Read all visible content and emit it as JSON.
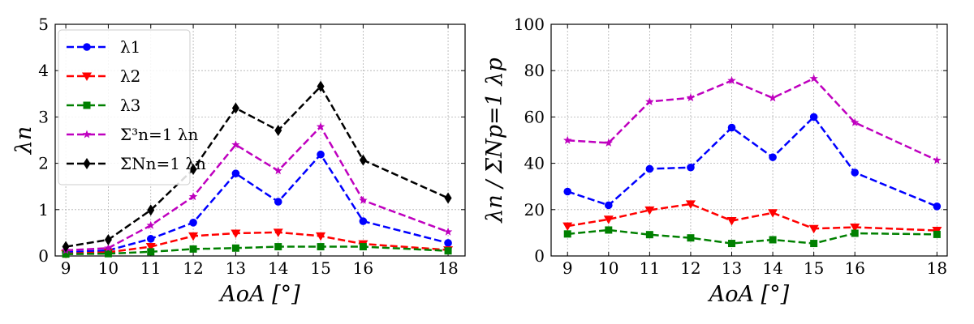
{
  "chart_data": [
    {
      "type": "line",
      "title": "",
      "xlabel": "AoA [°]",
      "ylabel": "λn",
      "x": [
        9,
        10,
        11,
        12,
        13,
        14,
        15,
        16,
        18
      ],
      "x_tick_labels": [
        "9",
        "10",
        "11",
        "12",
        "13",
        "14",
        "15",
        "16",
        "18"
      ],
      "xlim": [
        8.75,
        18.4
      ],
      "ylim": [
        0,
        5
      ],
      "y_ticks": [
        0,
        1,
        2,
        3,
        4,
        5
      ],
      "y_tick_labels": [
        "0",
        "1",
        "2",
        "3",
        "4",
        "5"
      ],
      "grid": true,
      "legend_position": "top-left",
      "series": [
        {
          "name": "λ1",
          "color": "#0000ff",
          "marker": "circle",
          "values": [
            0.08,
            0.12,
            0.37,
            0.72,
            1.78,
            1.17,
            2.19,
            0.75,
            0.28
          ]
        },
        {
          "name": "λ2",
          "color": "#ff0000",
          "marker": "triangle-down",
          "values": [
            0.05,
            0.08,
            0.2,
            0.43,
            0.49,
            0.51,
            0.43,
            0.26,
            0.13
          ]
        },
        {
          "name": "λ3",
          "color": "#008000",
          "marker": "square",
          "values": [
            0.04,
            0.05,
            0.09,
            0.15,
            0.17,
            0.2,
            0.2,
            0.2,
            0.11
          ]
        },
        {
          "name": "Σ³n=1 λn",
          "color": "#bf00bf",
          "marker": "star",
          "values": [
            0.12,
            0.17,
            0.66,
            1.28,
            2.4,
            1.84,
            2.79,
            1.2,
            0.52
          ]
        },
        {
          "name": "ΣNn=1 λn",
          "color": "#000000",
          "marker": "diamond",
          "values": [
            0.2,
            0.35,
            0.99,
            1.87,
            3.19,
            2.71,
            3.66,
            2.07,
            1.25
          ]
        }
      ]
    },
    {
      "type": "line",
      "title": "",
      "xlabel": "AoA [°]",
      "ylabel": "λn / ΣNp=1 λp",
      "x": [
        9,
        10,
        11,
        12,
        13,
        14,
        15,
        16,
        18
      ],
      "x_tick_labels": [
        "9",
        "10",
        "11",
        "12",
        "13",
        "14",
        "15",
        "16",
        "18"
      ],
      "xlim": [
        8.6,
        18.25
      ],
      "ylim": [
        0,
        100
      ],
      "y_ticks": [
        0,
        20,
        40,
        60,
        80,
        100
      ],
      "y_tick_labels": [
        "0",
        "20",
        "40",
        "60",
        "80",
        "100"
      ],
      "grid": true,
      "series": [
        {
          "name": "λ1",
          "color": "#0000ff",
          "marker": "circle",
          "values": [
            27.8,
            21.9,
            37.6,
            38.2,
            55.4,
            42.6,
            60.0,
            36.0,
            21.4
          ]
        },
        {
          "name": "λ2",
          "color": "#ff0000",
          "marker": "triangle-down",
          "values": [
            12.9,
            15.8,
            19.8,
            22.4,
            15.2,
            18.6,
            11.8,
            12.4,
            11.0
          ]
        },
        {
          "name": "λ3",
          "color": "#008000",
          "marker": "square",
          "values": [
            9.5,
            11.2,
            9.2,
            7.8,
            5.4,
            7.0,
            5.4,
            9.8,
            9.3
          ]
        },
        {
          "name": "Σ³n=1 λn",
          "color": "#bf00bf",
          "marker": "star",
          "values": [
            49.9,
            48.8,
            66.6,
            68.3,
            75.7,
            68.2,
            76.6,
            57.6,
            41.3
          ]
        }
      ]
    }
  ]
}
